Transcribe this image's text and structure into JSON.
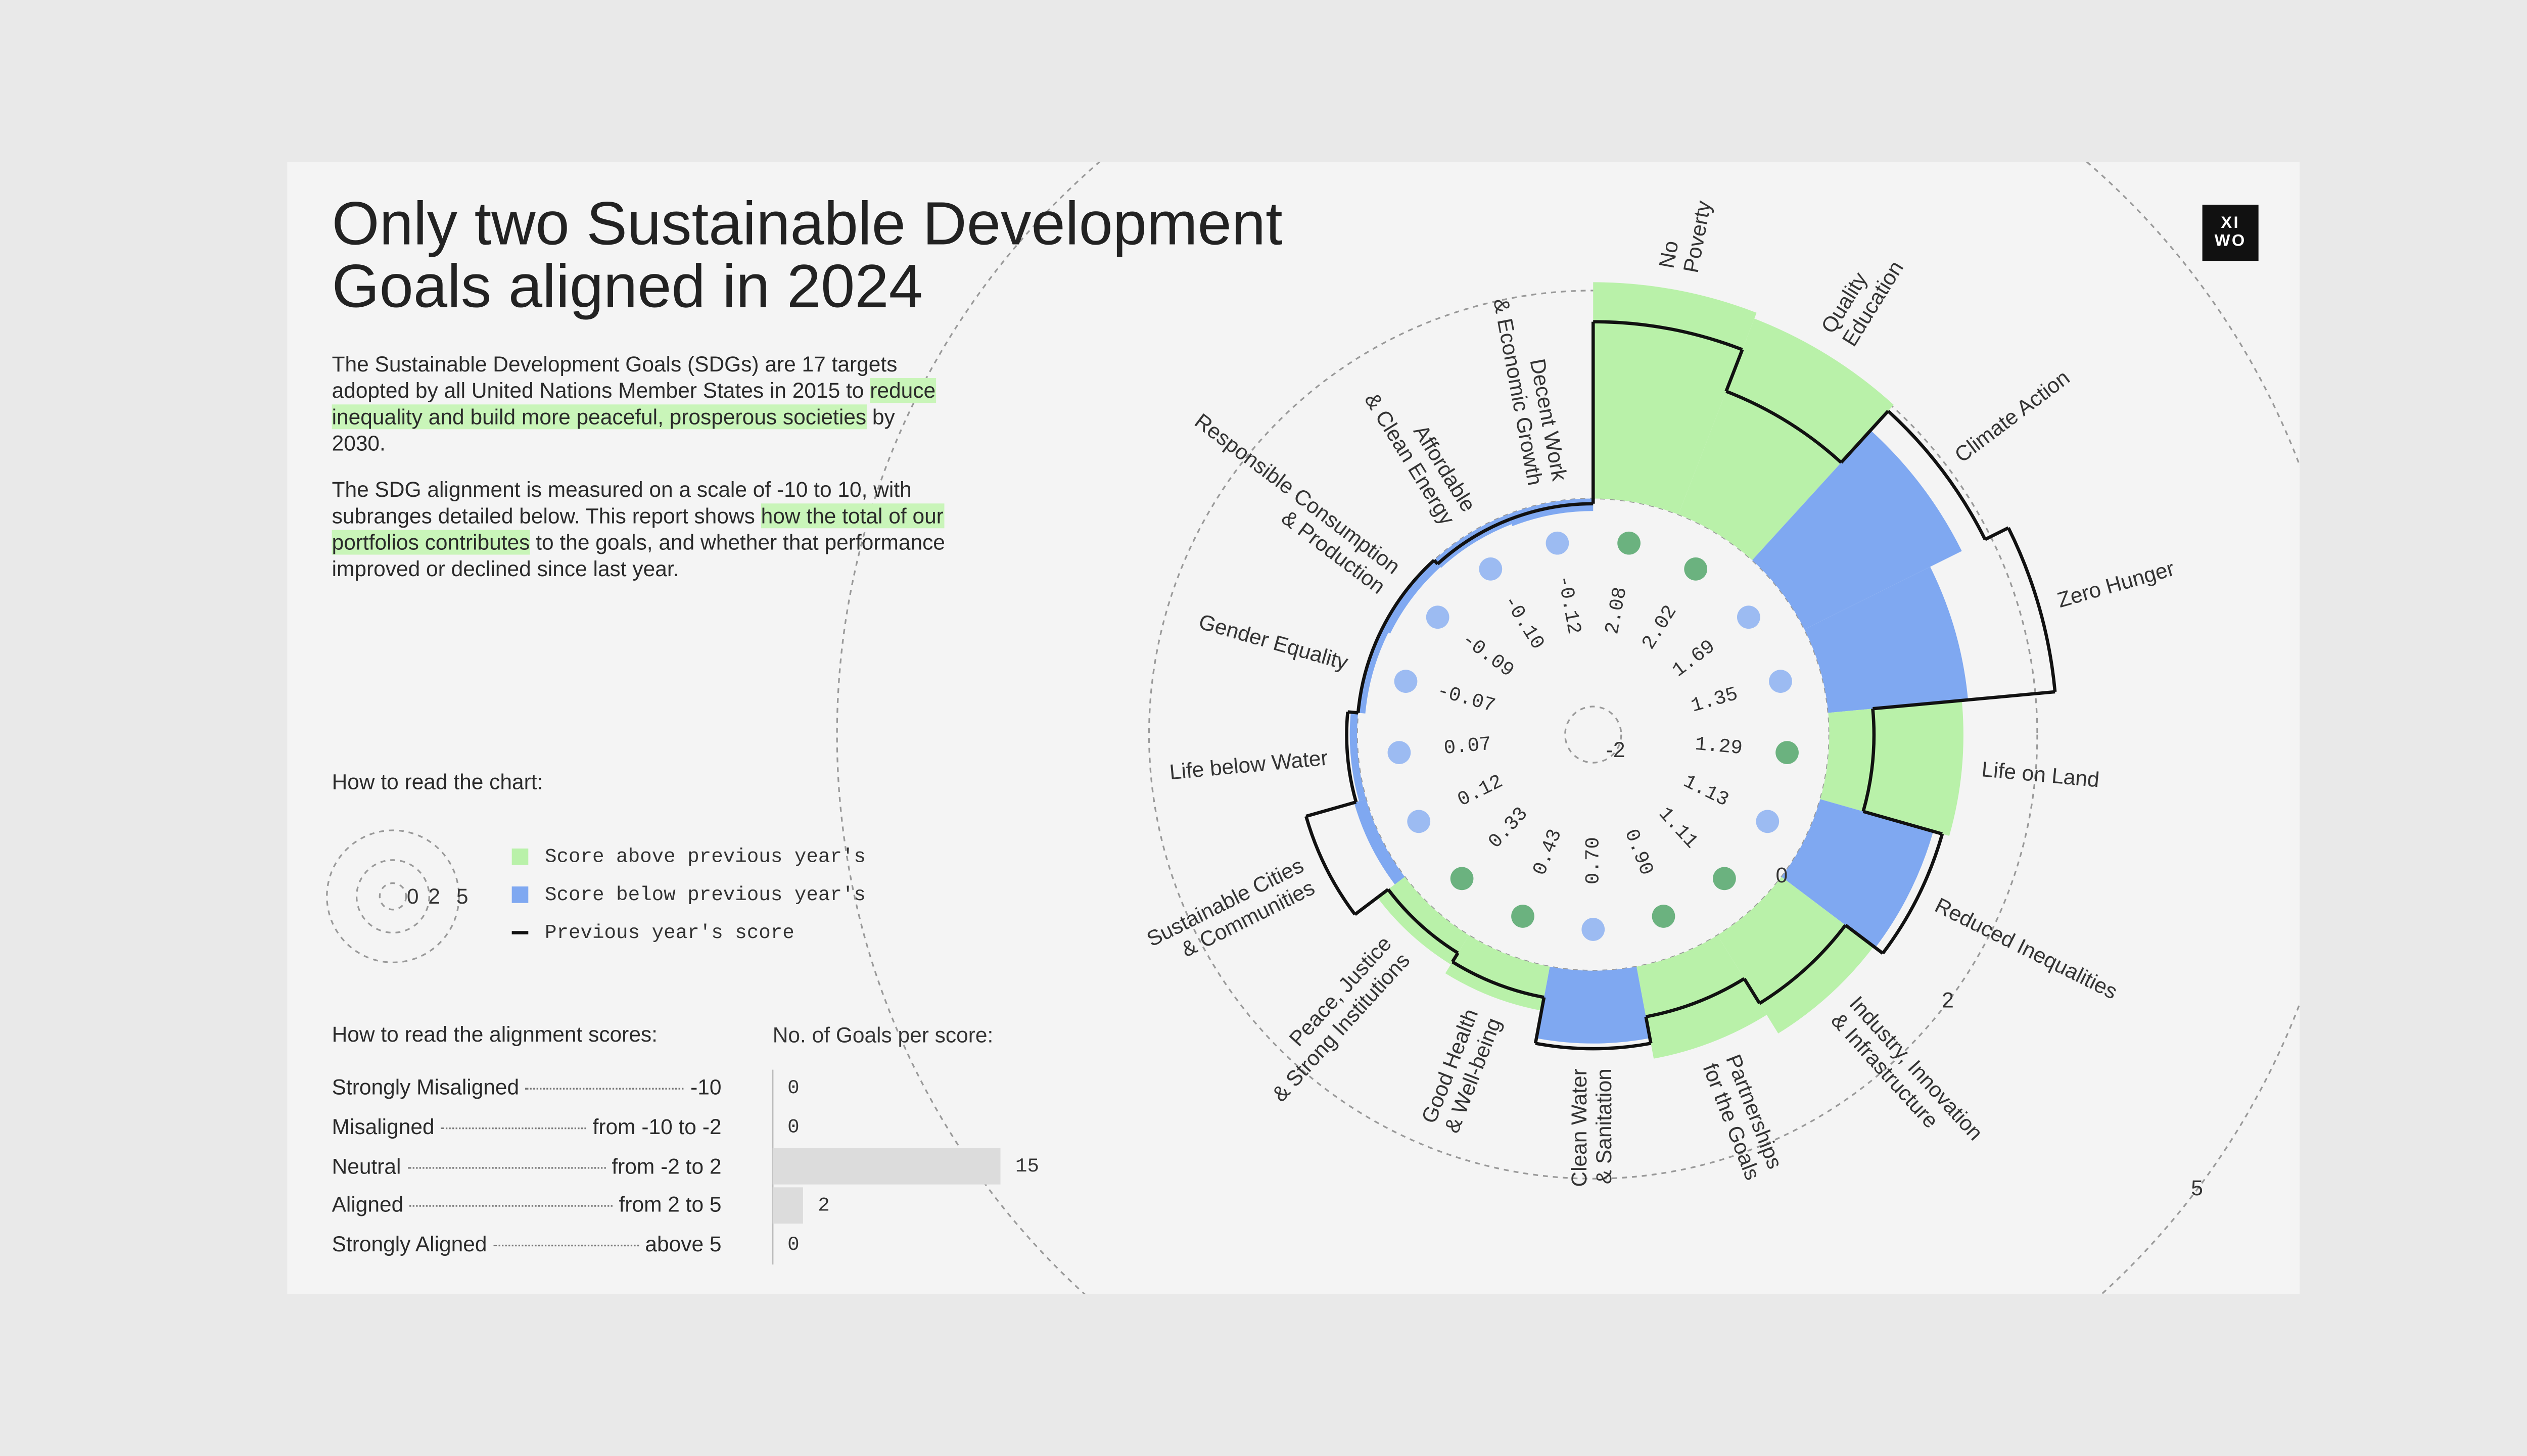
{
  "header": {
    "title": "Only two Sustainable Development Goals aligned in 2024",
    "logo": [
      "XI",
      "WO"
    ]
  },
  "intro": [
    [
      {
        "text": "The Sustainable Development Goals (SDGs) are 17 targets adopted by all United Nations Member States in 2015 to ",
        "highlight": false
      },
      {
        "text": "reduce inequality and build more peaceful, prosperous societies",
        "highlight": true
      },
      {
        "text": " by 2030.",
        "highlight": false
      }
    ],
    [
      {
        "text": "The SDG alignment is measured on a scale of -10 to 10, with subranges detailed below. This report shows ",
        "highlight": false
      },
      {
        "text": "how the total of our portfolios contributes",
        "highlight": true
      },
      {
        "text": " to the goals, and whether that performance improved or declined since last year.",
        "highlight": false
      }
    ]
  ],
  "highlight_color": "#c9f5b9",
  "how_to_read": "How to read the chart:",
  "alignment": {
    "title": "How to read the alignment scores:",
    "rows": [
      {
        "name": "Strongly Misaligned",
        "range": "-10"
      },
      {
        "name": "Misaligned",
        "range": "from -10 to -2"
      },
      {
        "name": "Neutral",
        "range": "from -2 to 2"
      },
      {
        "name": "Aligned",
        "range": "from 2 to 5"
      },
      {
        "name": "Strongly Aligned",
        "range": "above 5"
      }
    ]
  },
  "chart_data": [
    {
      "type": "radial",
      "categories": [
        [
          "No",
          "Poverty"
        ],
        [
          "Quality",
          "Education"
        ],
        [
          "Climate Action"
        ],
        [
          "Zero Hunger"
        ],
        [
          "Life on Land"
        ],
        [
          "Reduced Inequalities"
        ],
        [
          "Industry, Innovation",
          "& Infrastructure"
        ],
        [
          "Partnerships",
          "for the Goals"
        ],
        [
          "Clean Water",
          "& Sanitation"
        ],
        [
          "Good Health",
          "& Well-being"
        ],
        [
          "Peace, Justice",
          "& Strong Institutions"
        ],
        [
          "Sustainable Cities",
          "& Communities"
        ],
        [
          "Life below Water"
        ],
        [
          "Gender Equality"
        ],
        [
          "Responsible Consumption",
          "& Production"
        ],
        [
          "Affordable",
          "& Clean Energy"
        ],
        [
          "Decent Work",
          "& Economic Growth"
        ]
      ],
      "values": [
        2.08,
        2.02,
        1.69,
        1.35,
        1.29,
        1.13,
        1.11,
        0.9,
        0.7,
        0.43,
        0.33,
        0.12,
        0.07,
        -0.07,
        -0.09,
        -0.1,
        -0.12
      ],
      "value_labels": [
        "2.08",
        "2.02",
        "1.69",
        "1.35",
        "1.29",
        "1.13",
        "1.11",
        "0.90",
        "0.70",
        "0.43",
        "0.33",
        "0.12",
        "0.07",
        "-0.07",
        "-0.09",
        "-0.10",
        "-0.12"
      ],
      "previous": [
        1.7,
        1.27,
        1.94,
        2.19,
        0.43,
        1.22,
        0.77,
        0.49,
        0.75,
        0.3,
        0.2,
        0.6,
        0.1,
        0,
        0,
        -0.05,
        -0.05
      ],
      "ylim": [
        -2,
        5
      ],
      "yticks": [
        -2,
        0,
        2,
        5
      ],
      "colors": {
        "above": "#b9f1a9",
        "below": "#7fa8f1",
        "previous": "#111111"
      },
      "label_colors": {
        "above": "#3d9c58",
        "below": "#4a80d8"
      },
      "legend": [
        "Score above previous year's",
        "Score below previous year's",
        "Previous year's score"
      ]
    },
    {
      "type": "bar",
      "title": "No. of Goals per score:",
      "values": [
        0,
        0,
        15,
        2,
        0
      ],
      "color": "#dcdcdc",
      "xlim": [
        0,
        15
      ]
    }
  ]
}
